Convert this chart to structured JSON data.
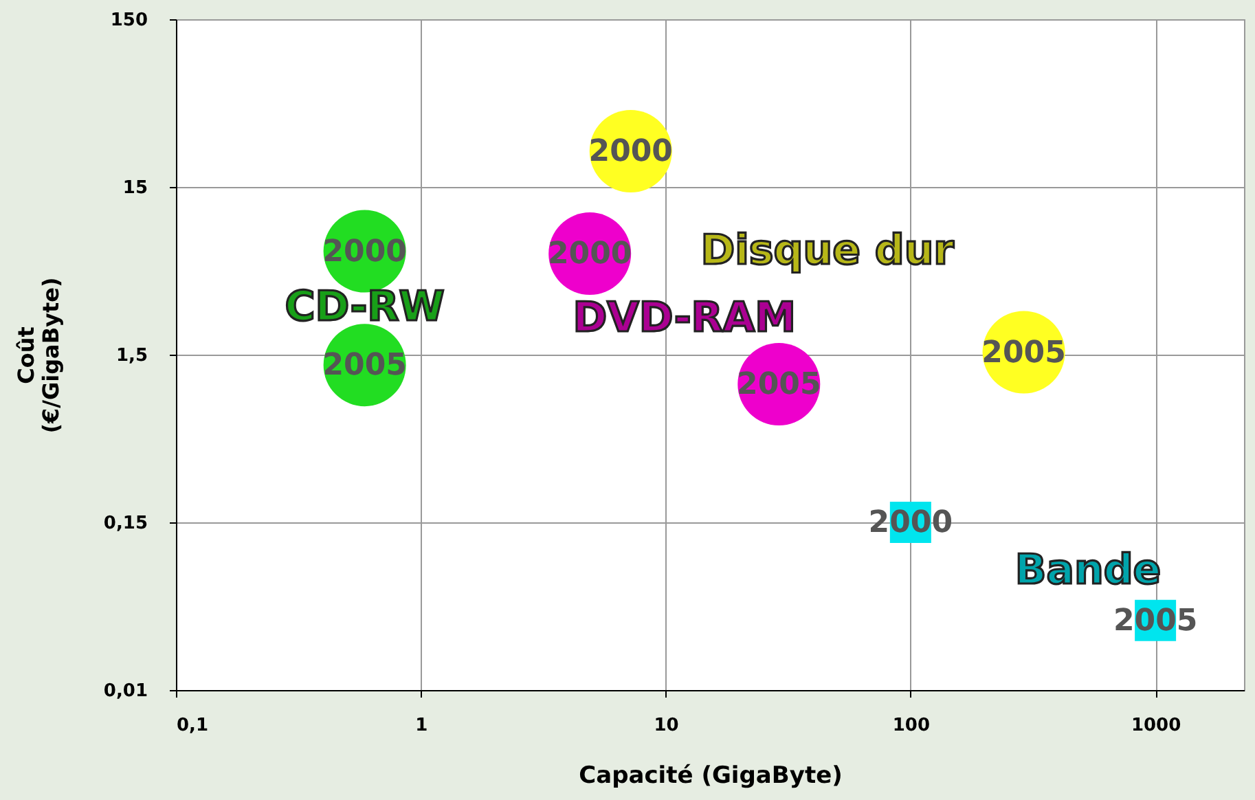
{
  "chart_data": {
    "type": "scatter",
    "xlabel": "Capacité (GigaByte)",
    "ylabel": "Coût\n(€/GigaByte)",
    "log": "xy",
    "grid": true,
    "legend": false,
    "xlim": [
      0.1,
      2300
    ],
    "xticks": [
      {
        "value": 0.1,
        "label": "0,1"
      },
      1,
      10,
      100,
      1000
    ],
    "ylim": [
      0.015,
      150
    ],
    "yticks": [
      {
        "value": 0.015,
        "label": "0,01"
      },
      {
        "value": 0.15,
        "label": "0,15"
      },
      {
        "value": 1.5,
        "label": "1,5"
      },
      15,
      150
    ],
    "annotations": [
      {
        "text": "2000",
        "x": 0.59,
        "y": 6.2
      },
      {
        "text": "2005",
        "x": 0.59,
        "y": 1.3
      },
      {
        "text": "2000",
        "x": 4.9,
        "y": 6.0
      },
      {
        "text": "2005",
        "x": 29,
        "y": 1.0
      },
      {
        "text": "2000",
        "x": 7.2,
        "y": 24.5
      },
      {
        "text": "2005",
        "x": 290,
        "y": 1.55
      },
      {
        "text": "2000",
        "x": 100,
        "y": 0.15
      },
      {
        "text": "2005",
        "x": 1000,
        "y": 0.039
      }
    ],
    "series": [
      {
        "name": "CD-RW",
        "color": "#22dd22",
        "marker": "circle",
        "x": [
          0.59,
          0.59
        ],
        "values": [
          6.2,
          1.3
        ]
      },
      {
        "name": "DVD-RAM",
        "color": "#ee00cc",
        "marker": "circle",
        "x": [
          4.9,
          29
        ],
        "values": [
          6.0,
          1.0
        ]
      },
      {
        "name": "Disque dur",
        "color": "#ffff22",
        "marker": "circle",
        "x": [
          7.2,
          290
        ],
        "values": [
          24.5,
          1.55
        ]
      },
      {
        "name": "Bande",
        "color": "#00e5ee",
        "marker": "square",
        "x": [
          100,
          1000
        ],
        "values": [
          0.15,
          0.039
        ]
      }
    ]
  }
}
